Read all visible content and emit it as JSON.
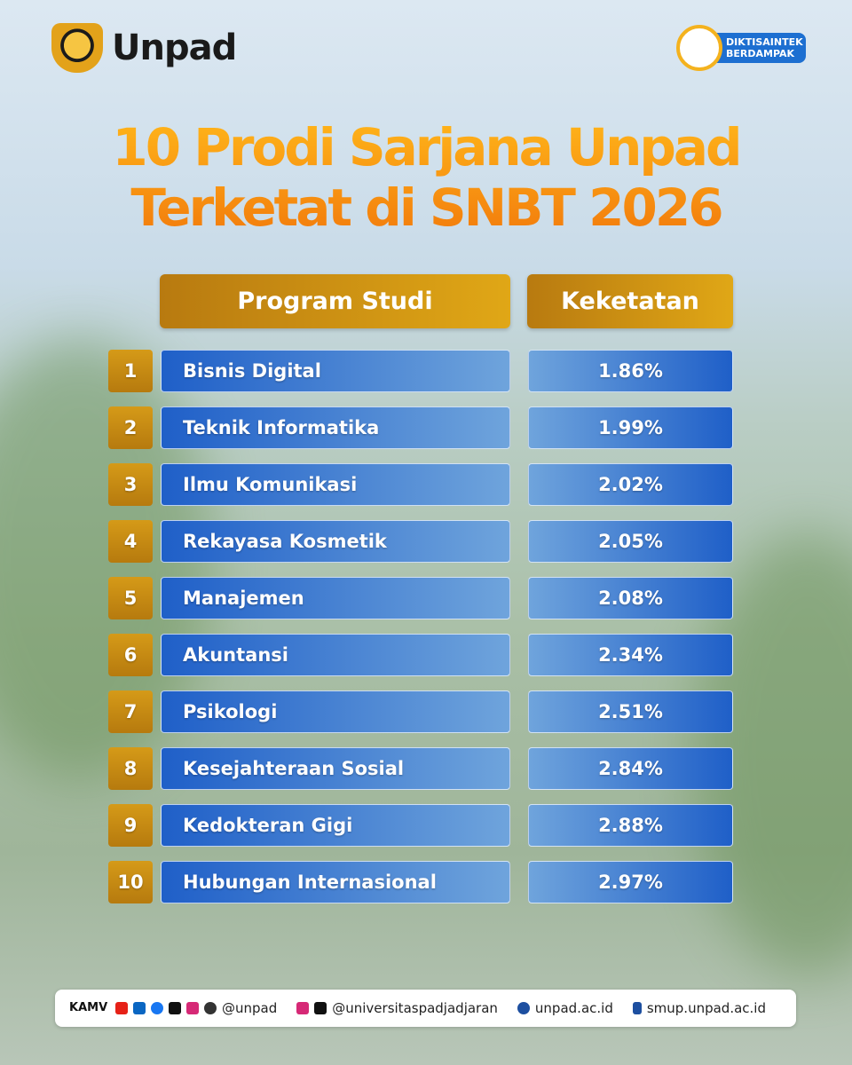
{
  "header": {
    "logo": "Unpad",
    "badge": "DIKTISAINTEK BERDAMPAK"
  },
  "title": [
    "10 Prodi Sarjana Unpad",
    "Terketat di SNBT 2026"
  ],
  "table": {
    "columns": [
      "Program Studi",
      "Keketatan"
    ],
    "rows": [
      [
        "1",
        "Bisnis Digital",
        "1.86%"
      ],
      [
        "2",
        "Teknik Informatika",
        "1.99%"
      ],
      [
        "3",
        "Ilmu Komunikasi",
        "2.02%"
      ],
      [
        "4",
        "Rekayasa Kosmetik",
        "2.05%"
      ],
      [
        "5",
        "Manajemen",
        "2.08%"
      ],
      [
        "6",
        "Akuntansi",
        "2.34%"
      ],
      [
        "7",
        "Psikologi",
        "2.51%"
      ],
      [
        "8",
        "Kesejahteraan Sosial",
        "2.84%"
      ],
      [
        "9",
        "Kedokteran Gigi",
        "2.88%"
      ],
      [
        "10",
        "Hubungan Internasional",
        "2.97%"
      ]
    ]
  },
  "footer": {
    "logo": "KAMV",
    "handle": "@unpad",
    "handle2": "@universitaspadjadjaran",
    "site": "unpad.ac.id",
    "site2": "smup.unpad.ac.id"
  }
}
